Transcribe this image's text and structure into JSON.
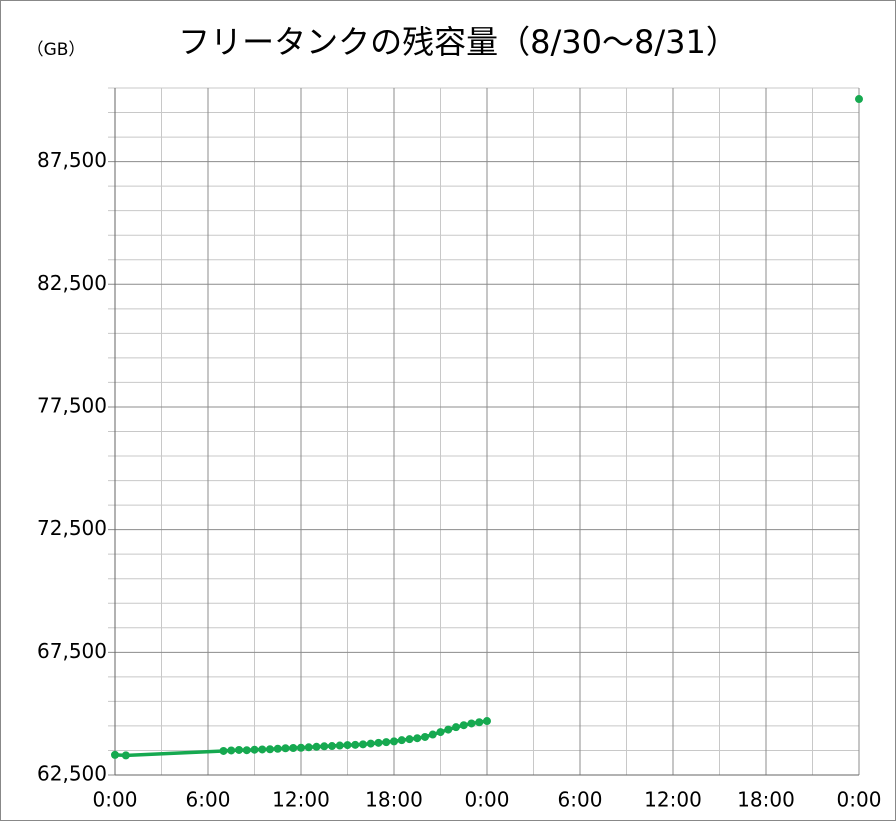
{
  "chart_data": {
    "type": "line",
    "title": "フリータンクの残容量（8/30〜8/31）",
    "y_label": "（GB）",
    "x": [
      0,
      0.7,
      7,
      7.5,
      8,
      8.5,
      9,
      9.5,
      10,
      10.5,
      11,
      11.5,
      12,
      12.5,
      13,
      13.5,
      14,
      14.5,
      15,
      15.5,
      16,
      16.5,
      17,
      17.5,
      18,
      18.5,
      19,
      19.5,
      20,
      20.5,
      21,
      21.5,
      22,
      22.5,
      23,
      23.5,
      24,
      36,
      48
    ],
    "series": [
      {
        "color": "#16a950",
        "values": [
          63320,
          63300,
          63480,
          63500,
          63520,
          63510,
          63530,
          63540,
          63550,
          63570,
          63590,
          63600,
          63610,
          63630,
          63650,
          63670,
          63680,
          63700,
          63720,
          63730,
          63750,
          63780,
          63810,
          63840,
          63870,
          63920,
          63960,
          64000,
          64050,
          64150,
          64250,
          64350,
          64450,
          64530,
          64600,
          64650,
          64700,
          null,
          90050
        ]
      }
    ],
    "xlim": [
      0,
      48
    ],
    "xticks": [
      {
        "value": 0,
        "label": "0:00"
      },
      {
        "value": 6,
        "label": "6:00"
      },
      {
        "value": 12,
        "label": "12:00"
      },
      {
        "value": 18,
        "label": "18:00"
      },
      {
        "value": 24,
        "label": "0:00"
      },
      {
        "value": 30,
        "label": "6:00"
      },
      {
        "value": 36,
        "label": "12:00"
      },
      {
        "value": 42,
        "label": "18:00"
      },
      {
        "value": 48,
        "label": "0:00"
      }
    ],
    "xminorticks": [
      3,
      9,
      15,
      21,
      27,
      33,
      39,
      45
    ],
    "ylim": [
      62500,
      90500
    ],
    "yticks": [
      {
        "value": 62500,
        "label": "62,500"
      },
      {
        "value": 67500,
        "label": "67,500"
      },
      {
        "value": 72500,
        "label": "72,500"
      },
      {
        "value": 77500,
        "label": "77,500"
      },
      {
        "value": 82500,
        "label": "82,500"
      },
      {
        "value": 87500,
        "label": "87,500"
      }
    ],
    "yminorticks": [
      63500,
      64500,
      65500,
      66500,
      68500,
      69500,
      70500,
      71500,
      73500,
      74500,
      75500,
      76500,
      78500,
      79500,
      80500,
      81500,
      83500,
      84500,
      85500,
      86500,
      88500,
      89500,
      90500
    ],
    "grid": true
  }
}
